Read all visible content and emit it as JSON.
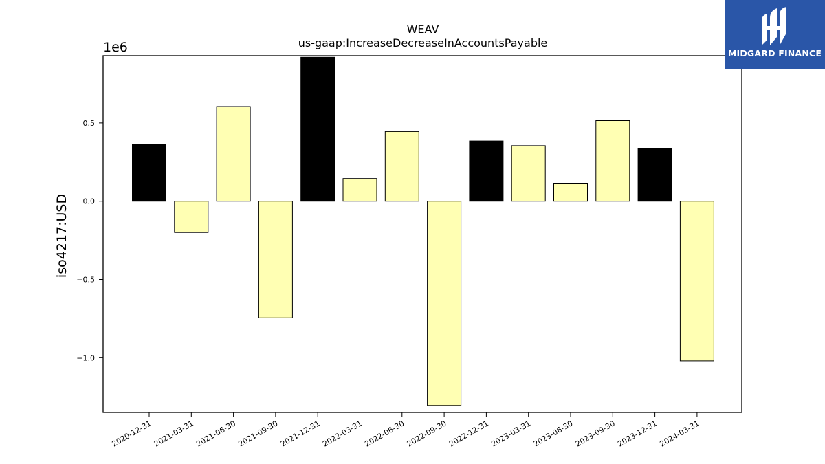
{
  "chart_data": {
    "type": "bar",
    "title": "WEAV",
    "subtitle": "us-gaap:IncreaseDecreaseInAccountsPayable",
    "ylabel": "iso4217:USD",
    "xlabel": "",
    "offset_label": "1e6",
    "ylim": [
      -1350000,
      930000
    ],
    "yticks": [
      -1000000,
      -500000,
      0,
      500000
    ],
    "ytick_labels": [
      "−1.0",
      "−0.5",
      "0.0",
      "0.5"
    ],
    "grid": false,
    "categories": [
      "2020-12-31",
      "2021-03-31",
      "2021-06-30",
      "2021-09-30",
      "2021-12-31",
      "2022-03-31",
      "2022-06-30",
      "2022-09-30",
      "2022-12-31",
      "2023-03-31",
      "2023-06-30",
      "2023-09-30",
      "2023-12-31",
      "2024-03-31"
    ],
    "values": [
      365000,
      -200000,
      605000,
      -745000,
      920000,
      145000,
      445000,
      -1305000,
      385000,
      355000,
      115000,
      515000,
      335000,
      -1020000
    ],
    "bar_colors": [
      "#000000",
      "#ffffb3",
      "#ffffb3",
      "#ffffb3",
      "#000000",
      "#ffffb3",
      "#ffffb3",
      "#ffffb3",
      "#000000",
      "#ffffb3",
      "#ffffb3",
      "#ffffb3",
      "#000000",
      "#ffffb3"
    ]
  },
  "logo": {
    "text": "MIDGARD FINANCE",
    "background": "#2a56a8"
  }
}
